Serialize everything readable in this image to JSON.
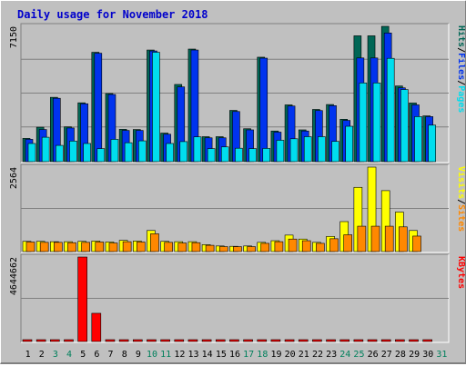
{
  "chart_data": [
    {
      "type": "bar",
      "title": "Daily usage for November 2018",
      "ymax_label": "7150",
      "ylim": [
        0,
        7150
      ],
      "legend": [
        "Pages",
        "Files",
        "Hits"
      ],
      "legend_separator": "/",
      "categories": [
        "1",
        "2",
        "3",
        "4",
        "5",
        "6",
        "7",
        "8",
        "9",
        "10",
        "11",
        "12",
        "13",
        "14",
        "15",
        "16",
        "17",
        "18",
        "19",
        "20",
        "21",
        "22",
        "23",
        "24",
        "25",
        "26",
        "27",
        "28",
        "29",
        "30",
        "31"
      ],
      "series": [
        {
          "name": "Hits",
          "color": "#006655",
          "values": [
            1230,
            1820,
            3400,
            1840,
            3110,
            5780,
            3600,
            1710,
            1700,
            5900,
            1510,
            4080,
            5950,
            1320,
            1320,
            2710,
            1740,
            5520,
            1620,
            3000,
            1680,
            2760,
            3020,
            2240,
            6650,
            6650,
            7150,
            4000,
            3100,
            2420,
            0
          ]
        },
        {
          "name": "Files",
          "color": "#0033ee",
          "values": [
            1180,
            1700,
            3350,
            1780,
            3060,
            5730,
            3550,
            1650,
            1650,
            5850,
            1450,
            3950,
            5900,
            1260,
            1260,
            2650,
            1680,
            5470,
            1560,
            2940,
            1620,
            2700,
            2960,
            2180,
            5480,
            5480,
            6800,
            3900,
            3000,
            2380,
            0
          ]
        },
        {
          "name": "Pages",
          "color": "#00ddee",
          "values": [
            960,
            1290,
            860,
            1090,
            960,
            690,
            1180,
            1000,
            1100,
            5780,
            960,
            1060,
            1310,
            690,
            780,
            710,
            690,
            700,
            1130,
            1210,
            1320,
            1320,
            1070,
            1870,
            4160,
            4160,
            5460,
            3810,
            2380,
            1930,
            0
          ]
        }
      ]
    },
    {
      "type": "bar",
      "ymax_label": "2564",
      "ylim": [
        0,
        2564
      ],
      "legend": [
        "Sites",
        "Visits"
      ],
      "legend_separator": "/",
      "categories": [
        "1",
        "2",
        "3",
        "4",
        "5",
        "6",
        "7",
        "8",
        "9",
        "10",
        "11",
        "12",
        "13",
        "14",
        "15",
        "16",
        "17",
        "18",
        "19",
        "20",
        "21",
        "22",
        "23",
        "24",
        "25",
        "26",
        "27",
        "28",
        "29",
        "30",
        "31"
      ],
      "series": [
        {
          "name": "Visits",
          "color": "#ffff00",
          "values": [
            310,
            310,
            300,
            300,
            310,
            320,
            290,
            340,
            320,
            640,
            310,
            300,
            300,
            210,
            170,
            160,
            170,
            280,
            330,
            500,
            380,
            280,
            460,
            910,
            1950,
            2564,
            1850,
            1200,
            640,
            0,
            0
          ]
        },
        {
          "name": "Sites",
          "color": "#ff8800",
          "values": [
            290,
            280,
            280,
            270,
            280,
            290,
            260,
            300,
            290,
            540,
            280,
            260,
            270,
            190,
            150,
            150,
            150,
            250,
            300,
            380,
            330,
            250,
            390,
            510,
            770,
            770,
            770,
            750,
            470,
            0,
            0
          ]
        }
      ]
    },
    {
      "type": "bar",
      "ymax_label": "4644662",
      "ylim": [
        0,
        4644662
      ],
      "legend": [
        "KBytes"
      ],
      "categories": [
        "1",
        "2",
        "3",
        "4",
        "5",
        "6",
        "7",
        "8",
        "9",
        "10",
        "11",
        "12",
        "13",
        "14",
        "15",
        "16",
        "17",
        "18",
        "19",
        "20",
        "21",
        "22",
        "23",
        "24",
        "25",
        "26",
        "27",
        "28",
        "29",
        "30",
        "31"
      ],
      "series": [
        {
          "name": "KBytes",
          "color": "#ff0000",
          "values": [
            220,
            850,
            120,
            150,
            4644662,
            1550000,
            260,
            200,
            210,
            190,
            190,
            210,
            300,
            210,
            330,
            420,
            400,
            200,
            190,
            300,
            430,
            920,
            440,
            220,
            800,
            560,
            520,
            360,
            270,
            200,
            0
          ]
        }
      ]
    }
  ],
  "x_label_colors": {
    "weekday": "#000000",
    "weekend": "#00805c"
  },
  "weekend_days": [
    "3",
    "4",
    "10",
    "11",
    "17",
    "18",
    "24",
    "25",
    "31"
  ]
}
